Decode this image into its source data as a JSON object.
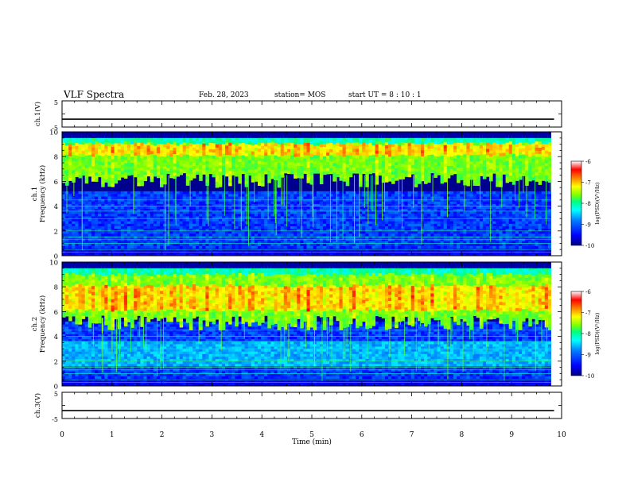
{
  "header": {
    "title": "VLF Spectra",
    "date": "Feb. 28, 2023",
    "station": "station= MOS",
    "start_ut": "start UT =  8 : 10 : 1"
  },
  "chart_data": [
    {
      "type": "line",
      "panel": "ch1-voltage",
      "ylabel": "ch.1(V)",
      "ylim": [
        -5,
        5
      ],
      "yticks": [
        "5",
        "-5"
      ],
      "series": [
        {
          "x": [
            0,
            9.85
          ],
          "y": [
            -2,
            -2
          ]
        }
      ]
    },
    {
      "type": "heatmap",
      "panel": "ch1-spectrogram",
      "ylabel_line1": "ch.1",
      "ylabel_line2": "Frequency (kHz)",
      "ylim": [
        0,
        10
      ],
      "yticks": [
        "0",
        "2",
        "4",
        "6",
        "8",
        "10"
      ],
      "xlim": [
        0,
        9.85
      ],
      "emission_band_khz": [
        5.5,
        9.5
      ],
      "peak_band_khz": [
        8,
        9
      ],
      "noise_band_khz": [
        0,
        5
      ],
      "colorbar": {
        "label": "log(PSD)(V²/Hz)",
        "range": [
          -10,
          -6
        ],
        "ticks": [
          "-6",
          "-7",
          "-8",
          "-9",
          "-10"
        ]
      }
    },
    {
      "type": "heatmap",
      "panel": "ch2-spectrogram",
      "ylabel_line1": "ch.2",
      "ylabel_line2": "Frequency (kHz)",
      "ylim": [
        0,
        10
      ],
      "yticks": [
        "0",
        "2",
        "4",
        "6",
        "8",
        "10"
      ],
      "xlim": [
        0,
        9.85
      ],
      "emission_band_khz": [
        4.5,
        9.5
      ],
      "peak_band_khz": [
        6,
        8
      ],
      "noise_band_khz": [
        0,
        5
      ],
      "colorbar": {
        "label": "log(PSD)(V²/Hz)",
        "range": [
          -10,
          -6
        ],
        "ticks": [
          "-6",
          "-7",
          "-8",
          "-9",
          "-10"
        ]
      }
    },
    {
      "type": "line",
      "panel": "ch3-voltage",
      "ylabel": "ch.3(V)",
      "ylim": [
        -5,
        5
      ],
      "yticks": [
        "5",
        "-5"
      ],
      "xlabel": "Time  (min)",
      "xlim": [
        0,
        10
      ],
      "xticks": [
        "0",
        "1",
        "2",
        "3",
        "4",
        "5",
        "6",
        "7",
        "8",
        "9",
        "10"
      ],
      "series": [
        {
          "x": [
            0,
            9.85
          ],
          "y": [
            -2,
            -2
          ]
        }
      ]
    }
  ],
  "colors": {
    "colormap": [
      "#00007f",
      "#0000ff",
      "#0080ff",
      "#00ffff",
      "#00ff80",
      "#7fff00",
      "#ffff00",
      "#ff8000",
      "#ff0000",
      "#ffffff"
    ]
  }
}
